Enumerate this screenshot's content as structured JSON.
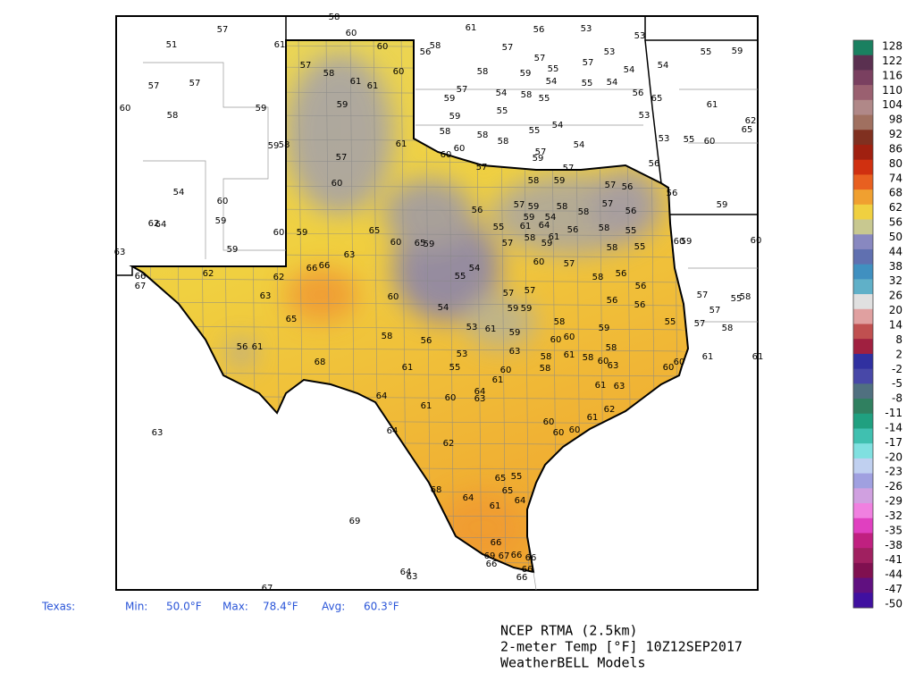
{
  "map": {
    "stations": [
      57,
      51,
      61,
      58,
      60,
      60,
      58,
      56,
      61,
      57,
      56,
      53,
      53,
      57,
      58,
      61,
      61,
      60,
      57,
      57,
      60,
      58,
      59,
      59,
      58,
      59,
      57,
      55,
      54,
      55,
      54,
      57,
      59,
      54,
      58,
      55,
      57,
      53,
      54,
      54,
      56,
      65,
      55,
      59,
      59,
      55,
      54,
      53,
      61,
      62,
      65,
      58,
      58,
      58,
      60,
      55,
      54,
      53,
      55,
      60,
      59,
      58,
      61,
      60,
      57,
      57,
      59,
      57,
      57,
      56,
      60,
      58,
      59,
      57,
      56,
      56,
      54,
      60,
      59,
      62,
      64,
      60,
      59,
      65,
      60,
      65,
      59,
      56,
      57,
      59,
      58,
      58,
      57,
      56,
      59,
      54,
      55,
      61,
      64,
      56,
      58,
      55,
      60,
      59,
      60,
      59,
      63,
      63,
      57,
      58,
      61,
      59,
      55,
      58,
      59,
      54,
      55,
      60,
      57,
      58,
      56,
      62,
      63,
      62,
      66,
      66,
      66,
      67,
      60,
      57,
      57,
      56,
      57,
      55,
      58,
      54,
      59,
      59,
      56,
      56,
      57,
      65,
      53,
      61,
      59,
      58,
      55,
      57,
      58,
      58,
      56,
      60,
      60,
      59,
      58,
      56,
      61,
      53,
      63,
      58,
      61,
      58,
      55,
      58,
      61,
      61,
      68,
      61,
      60,
      60,
      63,
      60,
      60,
      61,
      61,
      63,
      64,
      60,
      63,
      64,
      61,
      62,
      61,
      60,
      60,
      60,
      63,
      64,
      62,
      68,
      64,
      65,
      65,
      55,
      61,
      64,
      69,
      66,
      69,
      67,
      66,
      66,
      66,
      66,
      66,
      64,
      63,
      67
    ]
  },
  "colorbar": {
    "ticks": [
      128,
      122,
      116,
      110,
      104,
      98,
      92,
      86,
      80,
      74,
      68,
      62,
      56,
      50,
      44,
      38,
      32,
      26,
      20,
      14,
      8,
      2,
      -2,
      -5,
      -8,
      -11,
      -14,
      -17,
      -20,
      -23,
      -26,
      -29,
      -32,
      -35,
      -38,
      -41,
      -44,
      -47,
      -50
    ],
    "colors": [
      "#1a8060",
      "#5a3050",
      "#7a4060",
      "#9a6070",
      "#b08888",
      "#a07060",
      "#803020",
      "#a02010",
      "#d03010",
      "#e86020",
      "#f0a030",
      "#f0d040",
      "#c8c890",
      "#8888c0",
      "#6070b0",
      "#4090c0",
      "#60b0c8",
      "#e0e0e0",
      "#e0a0a0",
      "#c05050",
      "#a02040",
      "#3030a0",
      "#4848a8",
      "#507080",
      "#308060",
      "#20a080",
      "#40c0b0",
      "#80e0e0",
      "#c0d0f0",
      "#a0a0e0",
      "#d0a0e0",
      "#f080e0",
      "#e040c0",
      "#c02080",
      "#a02060",
      "#801050",
      "#601080",
      "#4010a0"
    ]
  },
  "stats": {
    "region": "Texas:",
    "min_label": "Min:",
    "min": "50.0°F",
    "max_label": "Max:",
    "max": "78.4°F",
    "avg_label": "Avg:",
    "avg": "60.3°F"
  },
  "footer": {
    "line1": "NCEP RTMA (2.5km)",
    "line2": "2-meter Temp [°F] 10Z12SEP2017",
    "line3": "WeatherBELL Models"
  }
}
